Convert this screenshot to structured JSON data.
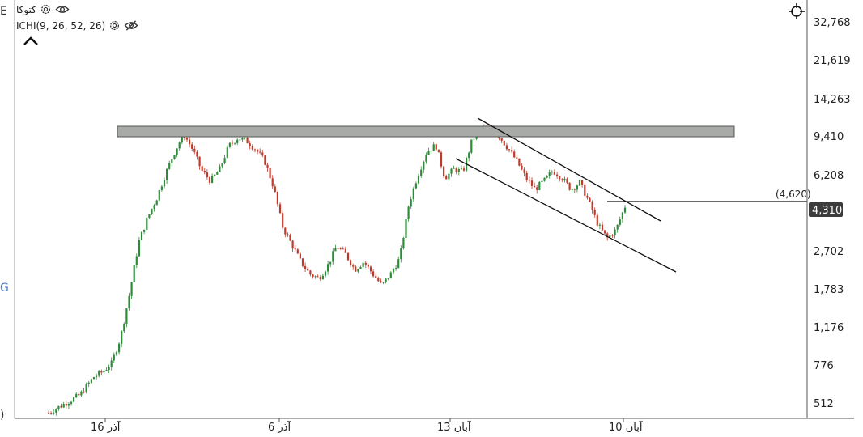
{
  "legend": {
    "symbol": "کتوکا",
    "indicator": "ICHI(9, 26, 52, 26)",
    "icons": [
      "settings-gear-icon",
      "eye-icon",
      "settings-gear-icon",
      "eye-off-icon",
      "chevron-up-icon",
      "crosshair-icon"
    ]
  },
  "edge_glyphs": [
    "E",
    "G",
    ")"
  ],
  "colors": {
    "up_candle": "#2e8b3a",
    "down_candle": "#c0392b",
    "resistance_zone_fill": "#a7aaa6",
    "resistance_zone_stroke": "#555555",
    "current_price_badge": "#3c3c3c",
    "axis_line": "#555555"
  },
  "chart_data": {
    "type": "candlestick",
    "y_scale": "log",
    "y_ticks": [
      "32,768",
      "21,619",
      "14,263",
      "9,410",
      "6,208",
      "2,702",
      "1,783",
      "1,176",
      "776",
      "512"
    ],
    "x_ticks": [
      "16 آذر",
      "6 آذر",
      "13 آبان",
      "10 آبان"
    ],
    "current_price": "4,310",
    "marked_level": "(4,620)",
    "resistance_zone": [
      9600,
      10700
    ],
    "channel": {
      "upper_line": [
        [
          13,
          12000
        ],
        [
          10,
          3800
        ]
      ],
      "lower_line": [
        [
          13,
          7800
        ],
        [
          10,
          2200
        ]
      ]
    },
    "trend_path": [
      [
        0.0,
        460
      ],
      [
        0.03,
        500
      ],
      [
        0.07,
        560
      ],
      [
        0.1,
        680
      ],
      [
        0.12,
        720
      ],
      [
        0.14,
        790
      ],
      [
        0.16,
        1050
      ],
      [
        0.18,
        1700
      ],
      [
        0.2,
        2950
      ],
      [
        0.22,
        3900
      ],
      [
        0.24,
        4800
      ],
      [
        0.26,
        6300
      ],
      [
        0.28,
        8000
      ],
      [
        0.3,
        9700
      ],
      [
        0.32,
        8200
      ],
      [
        0.34,
        6500
      ],
      [
        0.36,
        5800
      ],
      [
        0.38,
        6600
      ],
      [
        0.4,
        8500
      ],
      [
        0.42,
        9300
      ],
      [
        0.44,
        9000
      ],
      [
        0.46,
        8200
      ],
      [
        0.48,
        7200
      ],
      [
        0.5,
        5400
      ],
      [
        0.52,
        3500
      ],
      [
        0.54,
        2900
      ],
      [
        0.56,
        2400
      ],
      [
        0.58,
        2100
      ],
      [
        0.6,
        2000
      ],
      [
        0.62,
        2300
      ],
      [
        0.64,
        2850
      ],
      [
        0.66,
        2600
      ],
      [
        0.68,
        2200
      ],
      [
        0.7,
        2400
      ],
      [
        0.72,
        2100
      ],
      [
        0.74,
        1850
      ],
      [
        0.76,
        2100
      ],
      [
        0.78,
        2500
      ],
      [
        0.8,
        4500
      ],
      [
        0.82,
        6200
      ],
      [
        0.84,
        8000
      ],
      [
        0.86,
        8600
      ],
      [
        0.88,
        6000
      ],
      [
        0.9,
        6600
      ],
      [
        0.92,
        6400
      ],
      [
        0.94,
        9000
      ],
      [
        0.96,
        10400
      ],
      [
        0.98,
        10000
      ],
      [
        1.0,
        9500
      ],
      [
        1.02,
        8300
      ],
      [
        1.04,
        7200
      ],
      [
        1.06,
        6000
      ],
      [
        1.08,
        5300
      ],
      [
        1.1,
        5800
      ],
      [
        1.12,
        6500
      ],
      [
        1.14,
        6000
      ],
      [
        1.16,
        5300
      ],
      [
        1.18,
        5700
      ],
      [
        1.2,
        4600
      ],
      [
        1.22,
        3600
      ],
      [
        1.24,
        3100
      ],
      [
        1.26,
        3400
      ],
      [
        1.28,
        4400
      ]
    ]
  }
}
